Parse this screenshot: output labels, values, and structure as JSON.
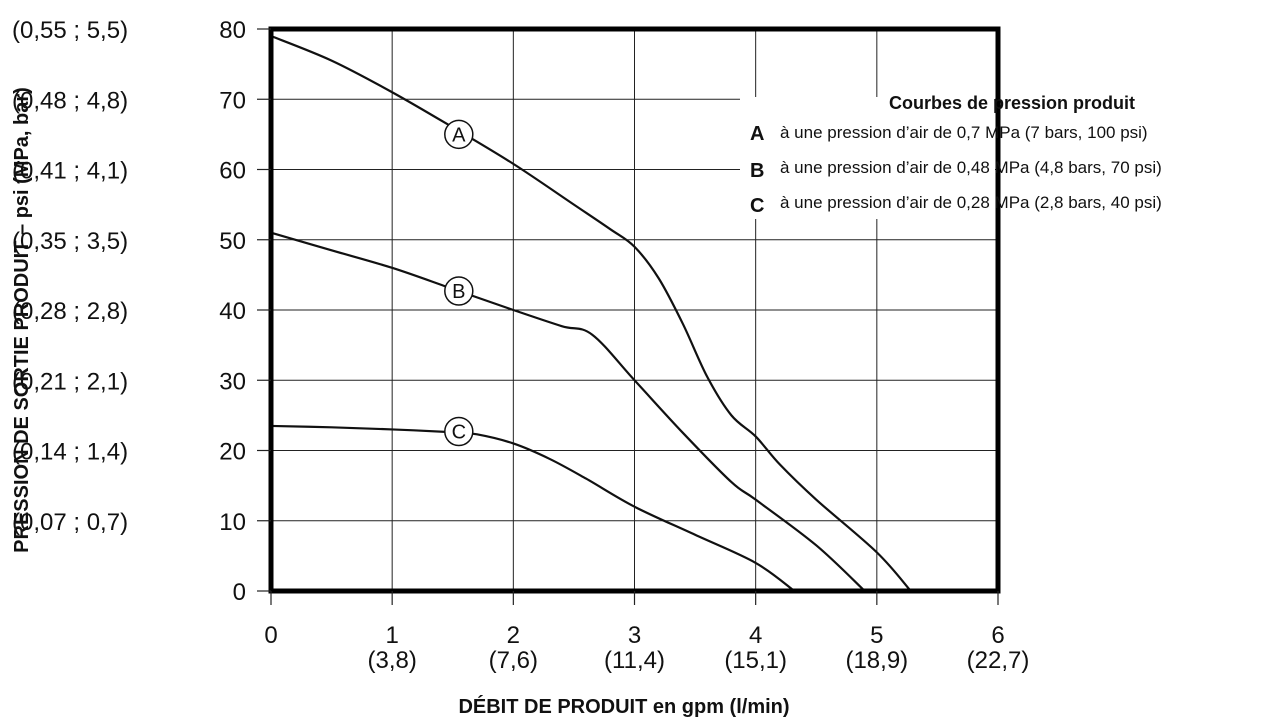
{
  "chart_data": {
    "type": "line",
    "xlabel": "DÉBIT DE PRODUIT en gpm (l/min)",
    "ylabel": "PRESSION DE SORTIE PRODUIT – psi (MPa, bar)",
    "xlim": [
      0,
      6
    ],
    "ylim": [
      0,
      80
    ],
    "grid": true,
    "x_ticks": [
      {
        "value": 0,
        "label": "0",
        "sub": ""
      },
      {
        "value": 1,
        "label": "1",
        "sub": "(3,8)"
      },
      {
        "value": 2,
        "label": "2",
        "sub": "(7,6)"
      },
      {
        "value": 3,
        "label": "3",
        "sub": "(11,4)"
      },
      {
        "value": 4,
        "label": "4",
        "sub": "(15,1)"
      },
      {
        "value": 5,
        "label": "5",
        "sub": "(18,9)"
      },
      {
        "value": 6,
        "label": "6",
        "sub": "(22,7)"
      }
    ],
    "y_ticks": [
      {
        "value": 0,
        "label": "0",
        "alt": ""
      },
      {
        "value": 10,
        "label": "10",
        "alt": "(0,07 ; 0,7)"
      },
      {
        "value": 20,
        "label": "20",
        "alt": "(0,14 ; 1,4)"
      },
      {
        "value": 30,
        "label": "30",
        "alt": "(0,21 ; 2,1)"
      },
      {
        "value": 40,
        "label": "40",
        "alt": "(0,28 ; 2,8)"
      },
      {
        "value": 50,
        "label": "50",
        "alt": "(0,35 ; 3,5)"
      },
      {
        "value": 60,
        "label": "60",
        "alt": "(0,41 ; 4,1)"
      },
      {
        "value": 70,
        "label": "70",
        "alt": "(0,48 ; 4,8)"
      },
      {
        "value": 80,
        "label": "80",
        "alt": "(0,55 ; 5,5)"
      }
    ],
    "legend": {
      "title": "Courbes de pression produit",
      "placement": "top-right",
      "entries": [
        {
          "key": "A",
          "text": "à une pression d’air de 0,7 MPa (7 bars, 100 psi)"
        },
        {
          "key": "B",
          "text": "à une pression d’air de 0,48 MPa (4,8 bars, 70 psi)"
        },
        {
          "key": "C",
          "text": "à une pression d’air de 0,28 MPa (2,8 bars, 40 psi)"
        }
      ]
    },
    "series": [
      {
        "name": "A",
        "marker_at": [
          1.55,
          65
        ],
        "points": [
          [
            0,
            79
          ],
          [
            0.5,
            75.5
          ],
          [
            1.0,
            71
          ],
          [
            1.5,
            66
          ],
          [
            2.0,
            60.8
          ],
          [
            2.5,
            55
          ],
          [
            2.8,
            51.5
          ],
          [
            3.0,
            49
          ],
          [
            3.2,
            44.5
          ],
          [
            3.4,
            38
          ],
          [
            3.6,
            30.5
          ],
          [
            3.8,
            25
          ],
          [
            4.0,
            22
          ],
          [
            4.2,
            18
          ],
          [
            4.5,
            13
          ],
          [
            5.0,
            5.5
          ],
          [
            5.28,
            0
          ]
        ]
      },
      {
        "name": "B",
        "marker_at": [
          1.55,
          42.7
        ],
        "points": [
          [
            0,
            51
          ],
          [
            0.5,
            48.5
          ],
          [
            1.0,
            46
          ],
          [
            1.5,
            43
          ],
          [
            2.0,
            40
          ],
          [
            2.4,
            37.7
          ],
          [
            2.65,
            36.5
          ],
          [
            3.0,
            30
          ],
          [
            3.4,
            22.5
          ],
          [
            3.8,
            15.5
          ],
          [
            4.0,
            13
          ],
          [
            4.5,
            6.5
          ],
          [
            4.9,
            0
          ]
        ]
      },
      {
        "name": "C",
        "marker_at": [
          1.55,
          22.7
        ],
        "points": [
          [
            0,
            23.5
          ],
          [
            0.5,
            23.3
          ],
          [
            1.0,
            23
          ],
          [
            1.5,
            22.6
          ],
          [
            1.7,
            22.3
          ],
          [
            2.0,
            21
          ],
          [
            2.3,
            18.8
          ],
          [
            2.6,
            16
          ],
          [
            3.0,
            12
          ],
          [
            3.5,
            8
          ],
          [
            4.0,
            4
          ],
          [
            4.32,
            0
          ]
        ]
      }
    ]
  }
}
